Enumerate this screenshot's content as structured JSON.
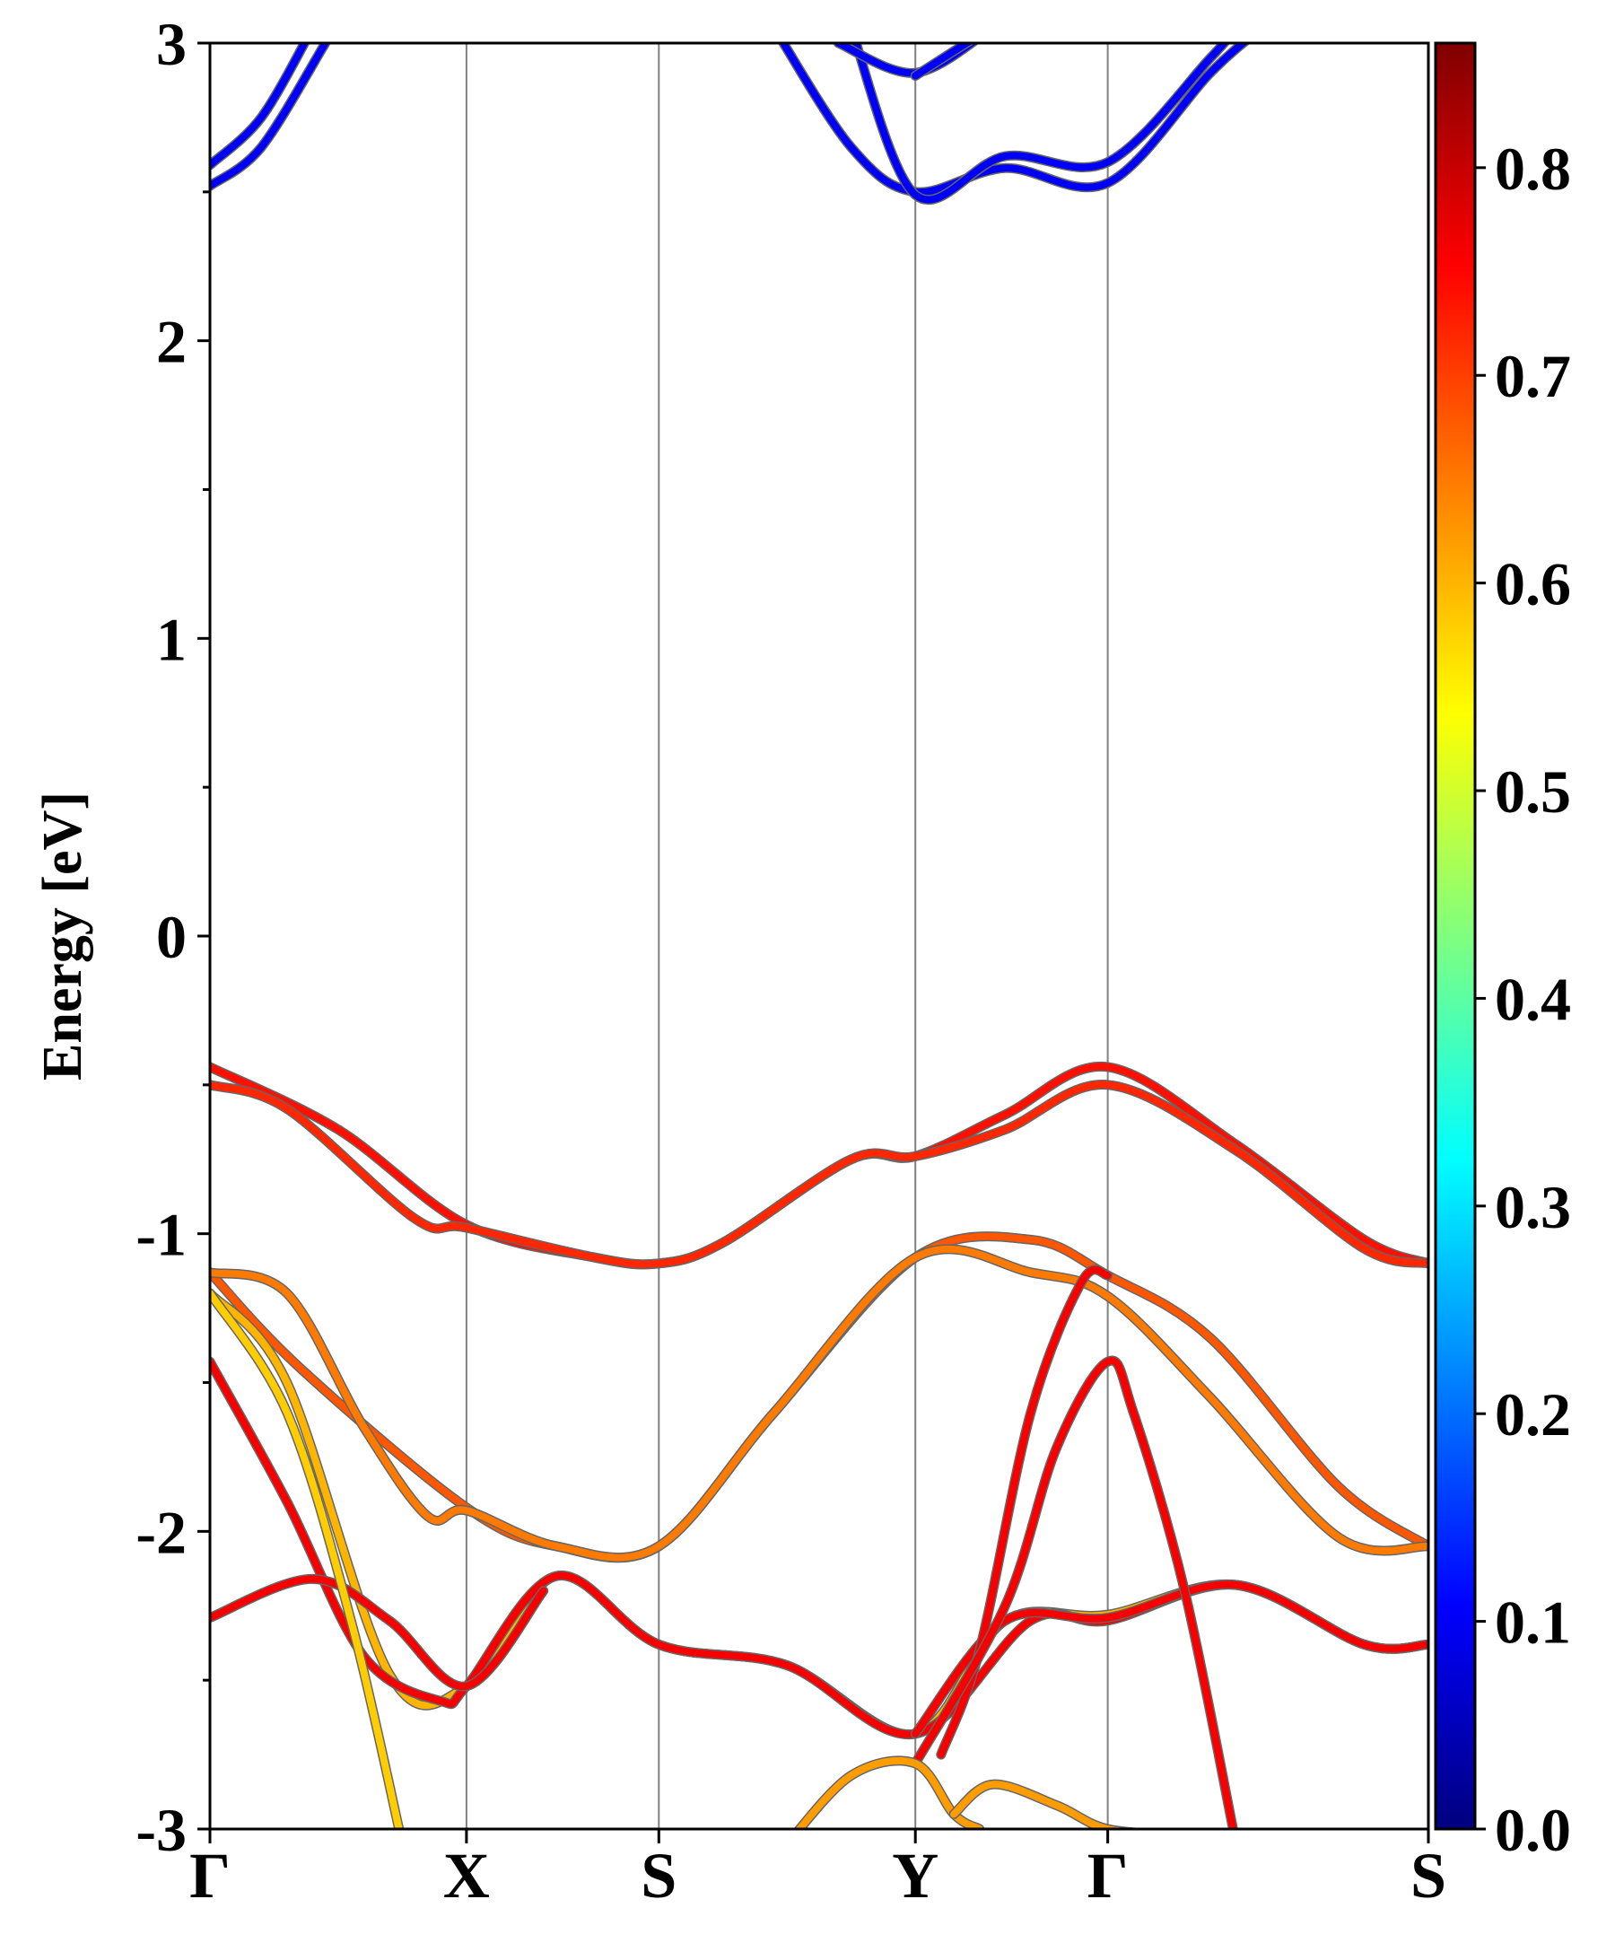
{
  "chart_data": {
    "type": "line",
    "title": "",
    "xlabel": "",
    "ylabel": "Energy [eV]",
    "ylim": [
      -3,
      3
    ],
    "grid": false,
    "legend": "none",
    "kpath": [
      "Γ",
      "X",
      "S",
      "Y",
      "Γ",
      "S"
    ],
    "kpath_positions": [
      0.0,
      1.0,
      1.75,
      2.75,
      3.5,
      4.75
    ],
    "xlim": [
      0.0,
      4.75
    ],
    "yticks": [
      "3",
      "2",
      "1",
      "0",
      "-1",
      "-2",
      "-3"
    ],
    "ytick_values": [
      3,
      2,
      1,
      0,
      -1,
      -2,
      -3
    ],
    "colorbar": {
      "min": 0.0,
      "max": 0.86,
      "ticks": [
        "0.0",
        "0.1",
        "0.2",
        "0.3",
        "0.4",
        "0.5",
        "0.6",
        "0.7",
        "0.8"
      ],
      "tick_values": [
        0.0,
        0.1,
        0.2,
        0.3,
        0.4,
        0.5,
        0.6,
        0.7,
        0.8
      ],
      "colormap": "jet"
    },
    "series": [
      {
        "weight": 0.1,
        "points": [
          [
            0.0,
            2.59
          ],
          [
            0.2,
            2.75
          ],
          [
            0.4,
            3.05
          ]
        ]
      },
      {
        "weight": 0.1,
        "points": [
          [
            0.0,
            2.52
          ],
          [
            0.2,
            2.65
          ],
          [
            0.45,
            3.0
          ]
        ]
      },
      {
        "weight": 0.1,
        "points": [
          [
            2.2,
            3.05
          ],
          [
            2.5,
            2.65
          ],
          [
            2.75,
            2.5
          ],
          [
            3.1,
            2.58
          ],
          [
            3.5,
            2.53
          ],
          [
            3.9,
            2.9
          ],
          [
            4.1,
            3.05
          ]
        ]
      },
      {
        "weight": 0.1,
        "points": [
          [
            2.5,
            3.05
          ],
          [
            2.75,
            2.49
          ],
          [
            3.1,
            2.62
          ],
          [
            3.5,
            2.6
          ],
          [
            3.9,
            2.95
          ],
          [
            4.0,
            3.05
          ]
        ]
      },
      {
        "weight": 0.1,
        "points": [
          [
            2.45,
            3.0
          ],
          [
            2.75,
            2.9
          ],
          [
            3.05,
            3.05
          ]
        ]
      },
      {
        "weight": 0.1,
        "points": [
          [
            2.75,
            2.89
          ],
          [
            2.95,
            3.0
          ],
          [
            3.05,
            3.05
          ]
        ]
      },
      {
        "weight": 0.74,
        "points": [
          [
            0.0,
            -0.44
          ],
          [
            0.5,
            -0.65
          ],
          [
            1.0,
            -0.97
          ],
          [
            1.5,
            -1.08
          ],
          [
            1.75,
            -1.1
          ],
          [
            2.0,
            -1.03
          ],
          [
            2.5,
            -0.75
          ],
          [
            2.75,
            -0.74
          ],
          [
            3.1,
            -0.6
          ],
          [
            3.5,
            -0.44
          ],
          [
            4.0,
            -0.7
          ],
          [
            4.5,
            -1.02
          ],
          [
            4.75,
            -1.1
          ]
        ]
      },
      {
        "weight": 0.72,
        "points": [
          [
            0.0,
            -0.5
          ],
          [
            0.3,
            -0.58
          ],
          [
            0.8,
            -0.95
          ],
          [
            1.0,
            -0.98
          ],
          [
            1.5,
            -1.08
          ],
          [
            1.75,
            -1.1
          ],
          [
            2.0,
            -1.03
          ],
          [
            2.5,
            -0.75
          ],
          [
            2.75,
            -0.74
          ],
          [
            3.1,
            -0.65
          ],
          [
            3.5,
            -0.5
          ],
          [
            4.0,
            -0.72
          ],
          [
            4.5,
            -1.05
          ],
          [
            4.75,
            -1.1
          ]
        ]
      },
      {
        "weight": 0.68,
        "points": [
          [
            0.0,
            -1.13
          ],
          [
            0.35,
            -1.45
          ],
          [
            1.0,
            -1.92
          ],
          [
            1.35,
            -2.05
          ],
          [
            1.75,
            -2.05
          ],
          [
            2.2,
            -1.6
          ],
          [
            2.75,
            -1.08
          ],
          [
            3.2,
            -1.02
          ],
          [
            3.5,
            -1.14
          ],
          [
            3.9,
            -1.35
          ],
          [
            4.4,
            -1.85
          ],
          [
            4.75,
            -2.05
          ]
        ]
      },
      {
        "weight": 0.65,
        "points": [
          [
            0.0,
            -1.13
          ],
          [
            0.3,
            -1.2
          ],
          [
            0.6,
            -1.65
          ],
          [
            0.85,
            -1.95
          ],
          [
            1.0,
            -1.93
          ],
          [
            1.35,
            -2.05
          ],
          [
            1.75,
            -2.05
          ],
          [
            2.2,
            -1.6
          ],
          [
            2.75,
            -1.08
          ],
          [
            3.2,
            -1.13
          ],
          [
            3.5,
            -1.21
          ],
          [
            3.9,
            -1.55
          ],
          [
            4.4,
            -2.02
          ],
          [
            4.75,
            -2.05
          ]
        ]
      },
      {
        "weight": 0.6,
        "points": [
          [
            0.0,
            -1.2
          ],
          [
            0.3,
            -1.5
          ],
          [
            0.7,
            -2.48
          ],
          [
            1.0,
            -2.52
          ],
          [
            1.35,
            -2.15
          ],
          [
            1.75,
            -2.38
          ],
          [
            2.25,
            -2.45
          ],
          [
            2.75,
            -2.68
          ],
          [
            3.1,
            -2.3
          ],
          [
            3.5,
            -2.28
          ],
          [
            4.0,
            -2.18
          ],
          [
            4.5,
            -2.38
          ],
          [
            4.75,
            -2.38
          ]
        ]
      },
      {
        "weight": 0.76,
        "points": [
          [
            0.0,
            -1.43
          ],
          [
            0.3,
            -1.9
          ],
          [
            0.6,
            -2.42
          ],
          [
            0.9,
            -2.57
          ],
          [
            1.0,
            -2.52
          ],
          [
            1.35,
            -2.15
          ],
          [
            1.75,
            -2.38
          ],
          [
            2.25,
            -2.45
          ],
          [
            2.75,
            -2.68
          ],
          [
            3.2,
            -2.3
          ],
          [
            3.5,
            -2.3
          ],
          [
            4.0,
            -2.18
          ],
          [
            4.5,
            -2.38
          ],
          [
            4.75,
            -2.38
          ]
        ]
      },
      {
        "weight": 0.76,
        "points": [
          [
            0.0,
            -2.29
          ],
          [
            0.4,
            -2.16
          ],
          [
            0.7,
            -2.3
          ],
          [
            1.0,
            -2.52
          ],
          [
            1.3,
            -2.2
          ]
        ]
      },
      {
        "weight": 0.76,
        "points": [
          [
            2.75,
            -2.68
          ],
          [
            3.1,
            -2.3
          ],
          [
            3.5,
            -2.29
          ],
          [
            4.0,
            -2.18
          ],
          [
            4.5,
            -2.38
          ],
          [
            4.75,
            -2.38
          ]
        ]
      },
      {
        "weight": 0.76,
        "points": [
          [
            2.85,
            -2.75
          ],
          [
            3.0,
            -2.4
          ],
          [
            3.2,
            -1.6
          ],
          [
            3.4,
            -1.16
          ],
          [
            3.5,
            -1.14
          ]
        ]
      },
      {
        "weight": 0.76,
        "points": [
          [
            2.75,
            -2.78
          ],
          [
            3.1,
            -2.25
          ],
          [
            3.3,
            -1.72
          ],
          [
            3.5,
            -1.43
          ],
          [
            3.6,
            -1.6
          ],
          [
            3.8,
            -2.2
          ],
          [
            4.0,
            -3.05
          ]
        ]
      },
      {
        "weight": 0.58,
        "points": [
          [
            0.0,
            -1.2
          ],
          [
            0.3,
            -1.6
          ],
          [
            0.55,
            -2.3
          ],
          [
            0.75,
            -3.05
          ]
        ]
      },
      {
        "weight": 0.62,
        "points": [
          [
            2.25,
            -3.05
          ],
          [
            2.5,
            -2.82
          ],
          [
            2.75,
            -2.78
          ],
          [
            2.9,
            -2.95
          ],
          [
            3.0,
            -3.0
          ]
        ]
      },
      {
        "weight": 0.62,
        "points": [
          [
            2.9,
            -2.95
          ],
          [
            3.05,
            -2.85
          ],
          [
            3.3,
            -2.92
          ],
          [
            3.5,
            -3.0
          ],
          [
            3.8,
            -3.02
          ]
        ]
      }
    ]
  }
}
